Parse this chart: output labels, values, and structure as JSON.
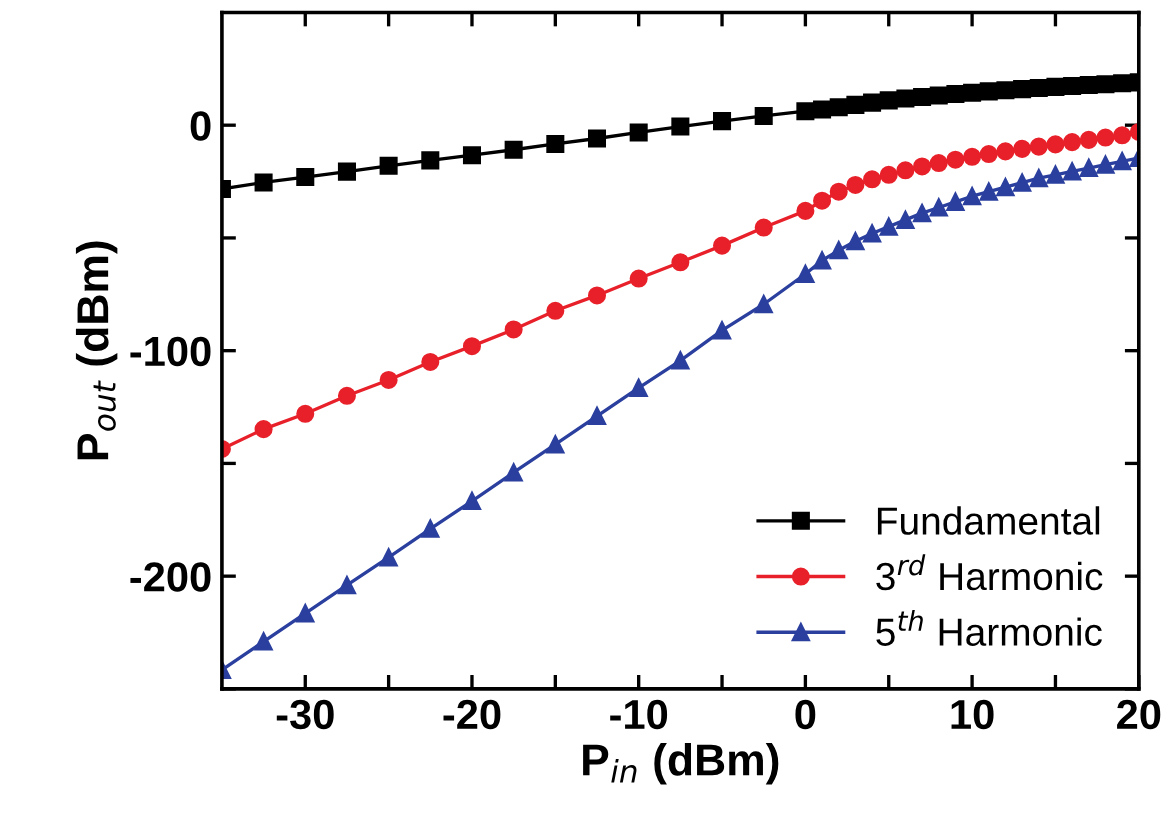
{
  "chart_data": {
    "type": "line",
    "xlabel": "P$_{in}$ (dBm)",
    "ylabel": "P$_{out}$ (dBm)",
    "xlim": [
      -35,
      20
    ],
    "ylim": [
      -250,
      50
    ],
    "xticks": [
      -30,
      {
        "value": -25,
        "label": null
      },
      -20,
      {
        "value": -15,
        "label": null
      },
      -10,
      {
        "value": -5,
        "label": null
      },
      0,
      {
        "value": 5,
        "label": null
      },
      10,
      {
        "value": 15,
        "label": null
      },
      20
    ],
    "yticks": [
      {
        "value": -250,
        "label": null
      },
      -200,
      {
        "value": -150,
        "label": null
      },
      -100,
      {
        "value": -50,
        "label": null
      },
      0
    ],
    "grid": false,
    "legend": "bottom right",
    "line_style": "solid",
    "x": [
      -35,
      -32.5,
      -30,
      -27.5,
      -25,
      -22.5,
      -20,
      -17.5,
      -15,
      -12.5,
      -10,
      -7.5,
      -5,
      -2.5,
      0,
      1,
      2,
      3,
      4,
      5,
      6,
      7,
      8,
      9,
      10,
      11,
      12,
      13,
      14,
      15,
      16,
      17,
      18,
      19,
      20
    ],
    "series": [
      {
        "name": "Fundamental",
        "color": "#000000",
        "marker": "square",
        "values": [
          -28.3,
          -25.4,
          -23,
          -20.6,
          -18,
          -15.6,
          -13.3,
          -10.9,
          -8.3,
          -5.9,
          -3.2,
          -0.6,
          1.8,
          4.1,
          6.2,
          7,
          8,
          9,
          10,
          11,
          11.8,
          12.5,
          13.2,
          13.8,
          14.4,
          15,
          15.5,
          16,
          16.5,
          17,
          17.4,
          17.8,
          18.2,
          18.6,
          19
        ]
      },
      {
        "name": "3$^{rd}$ Harmonic",
        "color": "#e8202a",
        "marker": "circle",
        "values": [
          -143.6,
          -134.8,
          -128,
          -120,
          -113,
          -105,
          -98,
          -90.6,
          -82.3,
          -75.5,
          -68,
          -60.8,
          -53.4,
          -45.4,
          -38,
          -33.5,
          -29.5,
          -26.5,
          -24,
          -22,
          -20,
          -18.3,
          -16.8,
          -15.3,
          -14,
          -12.8,
          -11.6,
          -10.5,
          -9.5,
          -8.5,
          -7.5,
          -6.5,
          -5.5,
          -4.5,
          -3
        ]
      },
      {
        "name": "5$^{th}$ Harmonic",
        "color": "#2a3f9e",
        "marker": "triangle",
        "values": [
          -241.6,
          -229,
          -216.5,
          -204,
          -191.7,
          -179,
          -166.7,
          -154,
          -141.6,
          -129,
          -116.5,
          -104.4,
          -91,
          -79.4,
          -66,
          -60,
          -55.5,
          -51.5,
          -48,
          -45,
          -42,
          -39,
          -36.5,
          -34,
          -31.5,
          -29.5,
          -27.5,
          -25.5,
          -23.5,
          -22,
          -20.5,
          -19,
          -17.5,
          -16,
          -14.5
        ]
      }
    ]
  }
}
